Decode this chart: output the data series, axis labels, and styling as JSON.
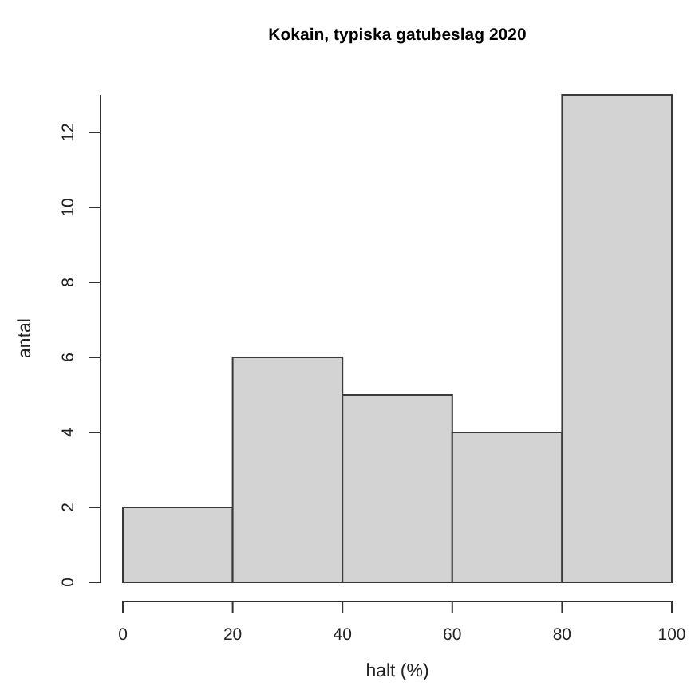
{
  "chart_data": {
    "type": "histogram",
    "title": "Kokain, typiska gatubeslag 2020",
    "xlabel": "halt (%)",
    "ylabel": "antal",
    "bins": [
      0,
      20,
      40,
      60,
      80,
      100
    ],
    "values": [
      2,
      6,
      5,
      4,
      13
    ],
    "color": "#d3d3d3",
    "xlim": [
      0,
      100
    ],
    "xticks": [
      0,
      20,
      40,
      60,
      80,
      100
    ],
    "ylim": [
      0,
      13
    ],
    "yticks": [
      0,
      2,
      4,
      6,
      8,
      10,
      12
    ]
  }
}
